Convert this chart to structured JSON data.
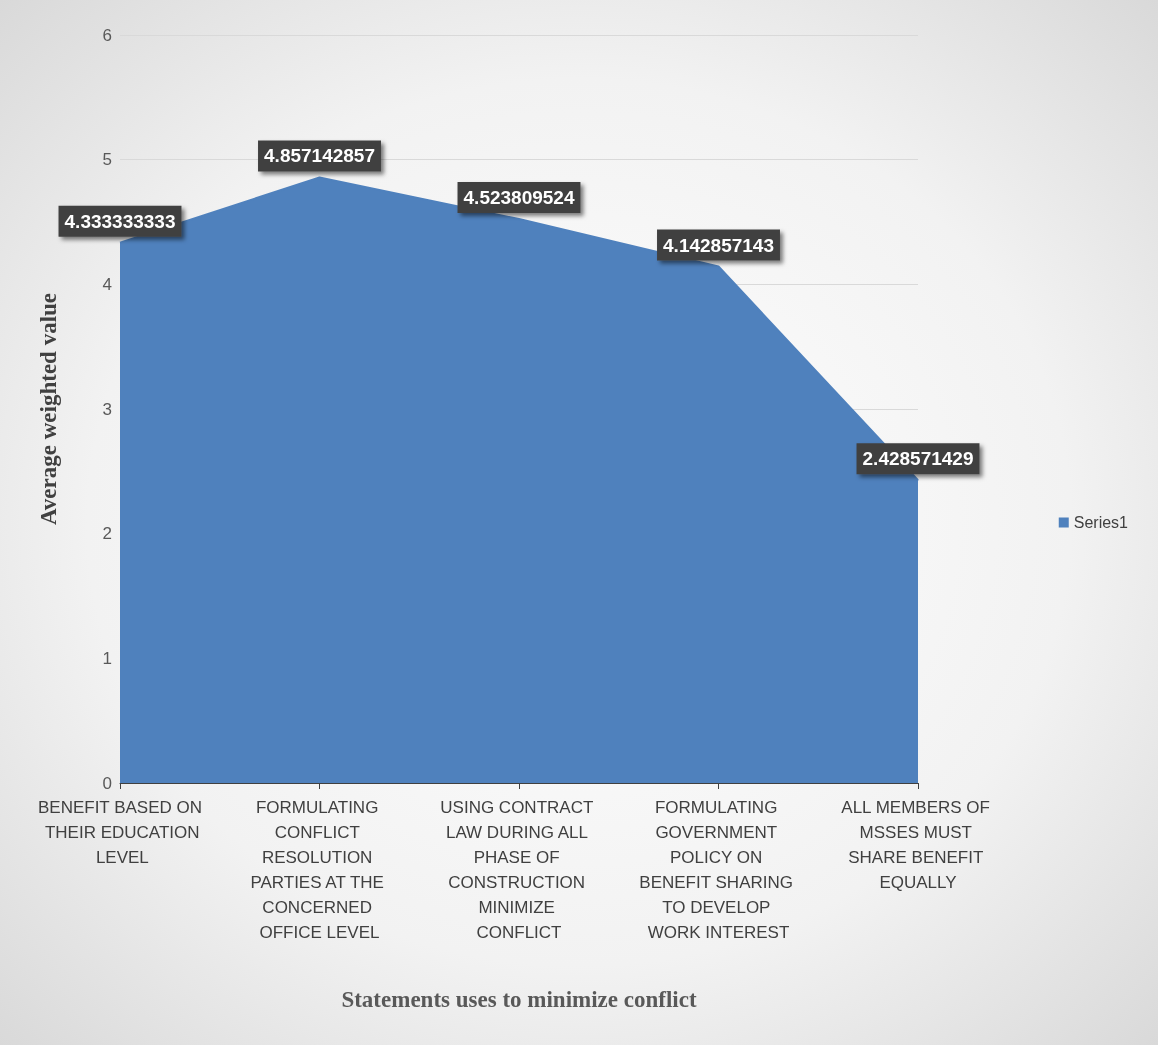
{
  "chart_data": {
    "type": "area",
    "xlabel": "Statements uses to minimize conflict",
    "ylabel": "Average weighted value",
    "categories": [
      "BENEFIT BASED ON THEIR EDUCATION LEVEL",
      "FORMULATING CONFLICT RESOLUTION PARTIES AT THE CONCERNED OFFICE LEVEL",
      "USING CONTRACT LAW DURING ALL PHASE OF CONSTRUCTION MINIMIZE CONFLICT",
      "FORMULATING GOVERNMENT POLICY ON BENEFIT SHARING TO DEVELOP WORK INTEREST",
      "ALL MEMBERS OF MSSES MUST SHARE BENEFIT EQUALLY"
    ],
    "series": [
      {
        "name": "Series1",
        "color": "#4f81bd",
        "values": [
          4.333333333,
          4.857142857,
          4.523809524,
          4.142857143,
          2.428571429
        ],
        "value_labels": [
          "4.333333333",
          "4.857142857",
          "4.523809524",
          "4.142857143",
          "2.428571429"
        ]
      }
    ],
    "ylim": [
      0,
      6
    ],
    "yticks": [
      0,
      1,
      2,
      3,
      4,
      5,
      6
    ],
    "grid": "y",
    "legend": "right"
  }
}
